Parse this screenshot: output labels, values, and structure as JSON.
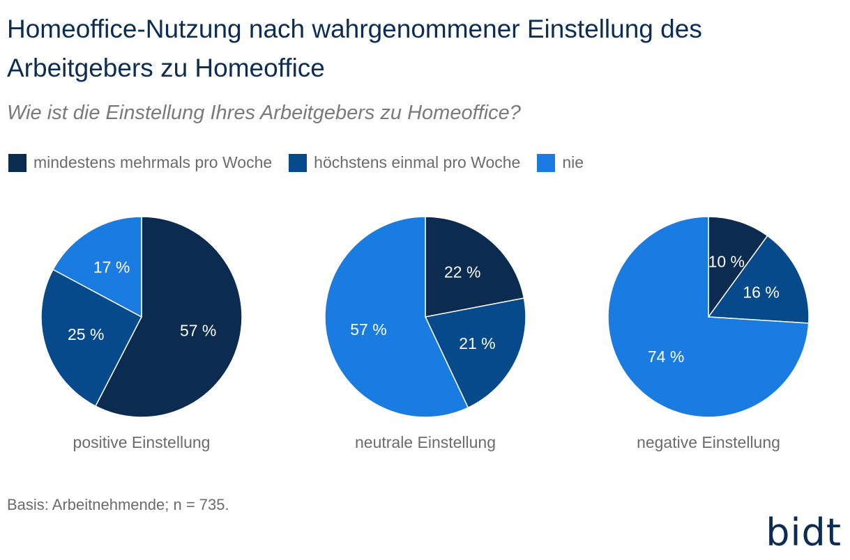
{
  "header": {
    "title": "Homeoffice-Nutzung nach wahrgenommener Einstellung des Arbeitgebers zu Homeoffice",
    "subtitle": "Wie ist die Einstellung Ihres Arbeitgebers zu Homeoffice?"
  },
  "legend": [
    {
      "label": "mindestens mehrmals pro Woche",
      "color": "#0b2b50"
    },
    {
      "label": "höchstens einmal pro Woche",
      "color": "#074a8c"
    },
    {
      "label": "nie",
      "color": "#1a7be0"
    }
  ],
  "chart_data": [
    {
      "type": "pie",
      "category": "positive Einstellung",
      "slices": [
        {
          "name": "mindestens mehrmals pro Woche",
          "value": 57,
          "label": "57 %"
        },
        {
          "name": "höchstens einmal pro Woche",
          "value": 25,
          "label": "25 %"
        },
        {
          "name": "nie",
          "value": 17,
          "label": "17 %"
        }
      ]
    },
    {
      "type": "pie",
      "category": "neutrale Einstellung",
      "slices": [
        {
          "name": "mindestens mehrmals pro Woche",
          "value": 22,
          "label": "22 %"
        },
        {
          "name": "höchstens einmal pro Woche",
          "value": 21,
          "label": "21 %"
        },
        {
          "name": "nie",
          "value": 57,
          "label": "57 %"
        }
      ]
    },
    {
      "type": "pie",
      "category": "negative Einstellung",
      "slices": [
        {
          "name": "mindestens mehrmals pro Woche",
          "value": 10,
          "label": "10 %"
        },
        {
          "name": "höchstens einmal pro Woche",
          "value": 16,
          "label": "16 %"
        },
        {
          "name": "nie",
          "value": 74,
          "label": "74 %"
        }
      ]
    }
  ],
  "footer": {
    "basis": "Basis: Arbeitnehmende; n = 735.",
    "logo": "bidt"
  }
}
